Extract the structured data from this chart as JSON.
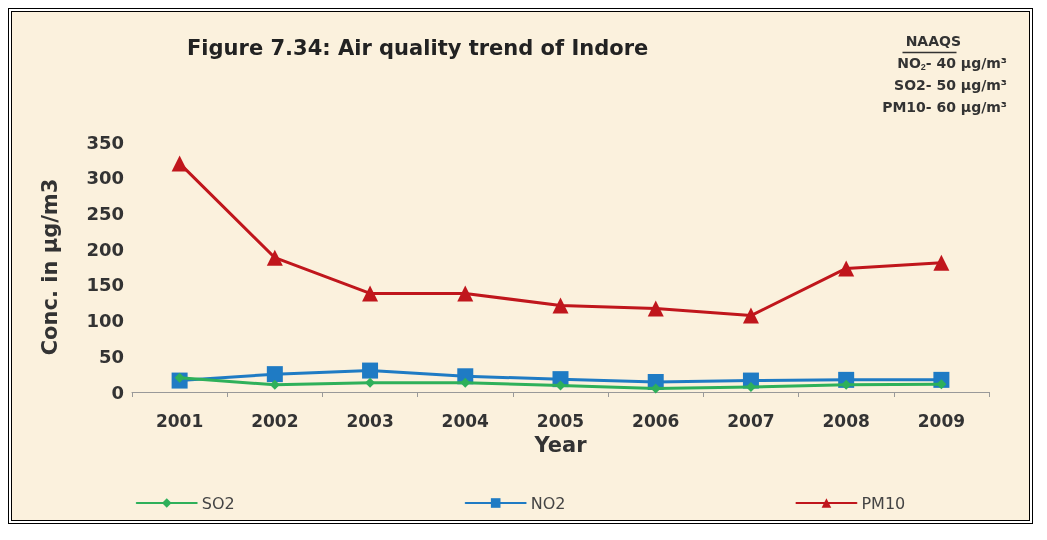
{
  "chart_data": {
    "type": "line",
    "title": "Figure 7.34: Air quality trend of Indore",
    "xlabel": "Year",
    "ylabel": "Conc. in µg/m3",
    "categories": [
      "2001",
      "2002",
      "2003",
      "2004",
      "2005",
      "2006",
      "2007",
      "2008",
      "2009"
    ],
    "series": [
      {
        "name": "SO2",
        "color": "#2eb05a",
        "marker": "diamond",
        "values": [
          20,
          10,
          13,
          13,
          9,
          5,
          7,
          10,
          11
        ]
      },
      {
        "name": "NO2",
        "color": "#1f7bc4",
        "marker": "square",
        "values": [
          16,
          25,
          30,
          22,
          18,
          14,
          16,
          17,
          17
        ]
      },
      {
        "name": "PM10",
        "color": "#c0161c",
        "marker": "triangle",
        "values": [
          320,
          188,
          138,
          138,
          121,
          117,
          107,
          173,
          181
        ]
      }
    ],
    "ylim": [
      0,
      350
    ],
    "yticks": [
      0,
      50,
      100,
      150,
      200,
      250,
      300,
      350
    ],
    "grid": false,
    "legend": "bottom",
    "line_style": "solid",
    "annotations": [
      "NAAQS",
      "NO$_{2}$- 40 µg/m³",
      "SO2- 50 µg/m³",
      "PM10- 60 µg/m³"
    ]
  }
}
